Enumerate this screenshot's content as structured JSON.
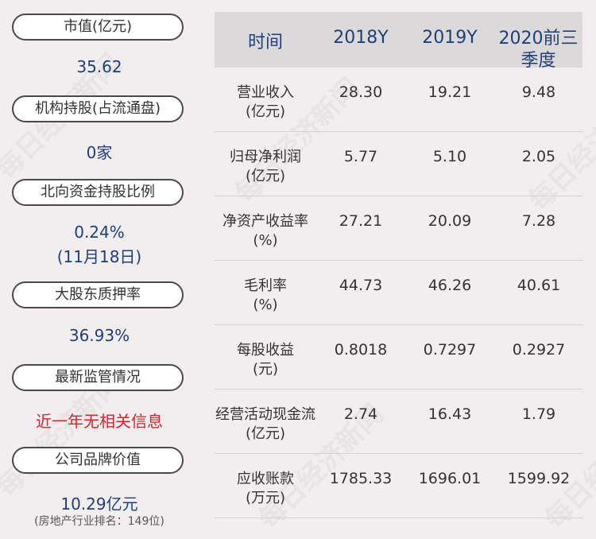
{
  "left": {
    "market_cap_label": "市值(亿元)",
    "market_cap_value": "35.62",
    "institution_label": "机构持股(占流通盘)",
    "institution_value": "0家",
    "northbound_label": "北向资金持股比例",
    "northbound_value": "0.24%",
    "northbound_date": "(11月18日)",
    "pledge_label": "大股东质押率",
    "pledge_value": "36.93%",
    "regulation_label": "最新监管情况",
    "regulation_value": "近一年无相关信息",
    "brand_label": "公司品牌价值",
    "brand_value": "10.29亿元",
    "brand_rank": "(房地产行业排名：149位)"
  },
  "table": {
    "headers": [
      "时间",
      "2018Y",
      "2019Y",
      "2020前三季度"
    ],
    "rows": [
      {
        "name1": "营业收入",
        "name2": "(亿元)",
        "v": [
          "28.30",
          "19.21",
          "9.48"
        ]
      },
      {
        "name1": "归母净利润",
        "name2": "(亿元)",
        "v": [
          "5.77",
          "5.10",
          "2.05"
        ]
      },
      {
        "name1": "净资产收益率",
        "name2": "(%)",
        "v": [
          "27.21",
          "20.09",
          "7.28"
        ]
      },
      {
        "name1": "毛利率",
        "name2": "(%)",
        "v": [
          "44.73",
          "46.26",
          "40.61"
        ]
      },
      {
        "name1": "每股收益",
        "name2": "(元)",
        "v": [
          "0.8018",
          "0.7297",
          "0.2927"
        ]
      },
      {
        "name1": "经营活动现金流",
        "name2": "(亿元)",
        "v": [
          "2.74",
          "16.43",
          "1.79"
        ]
      },
      {
        "name1": "应收账款",
        "name2": "(万元)",
        "v": [
          "1785.33",
          "1696.01",
          "1599.92"
        ]
      }
    ]
  },
  "watermark": "每日经济新闻",
  "colors": {
    "background": "#f2eeef",
    "value_blue": "#1f3f7a",
    "alert_red": "#d8242a",
    "header_bg": "#dcd9db"
  }
}
